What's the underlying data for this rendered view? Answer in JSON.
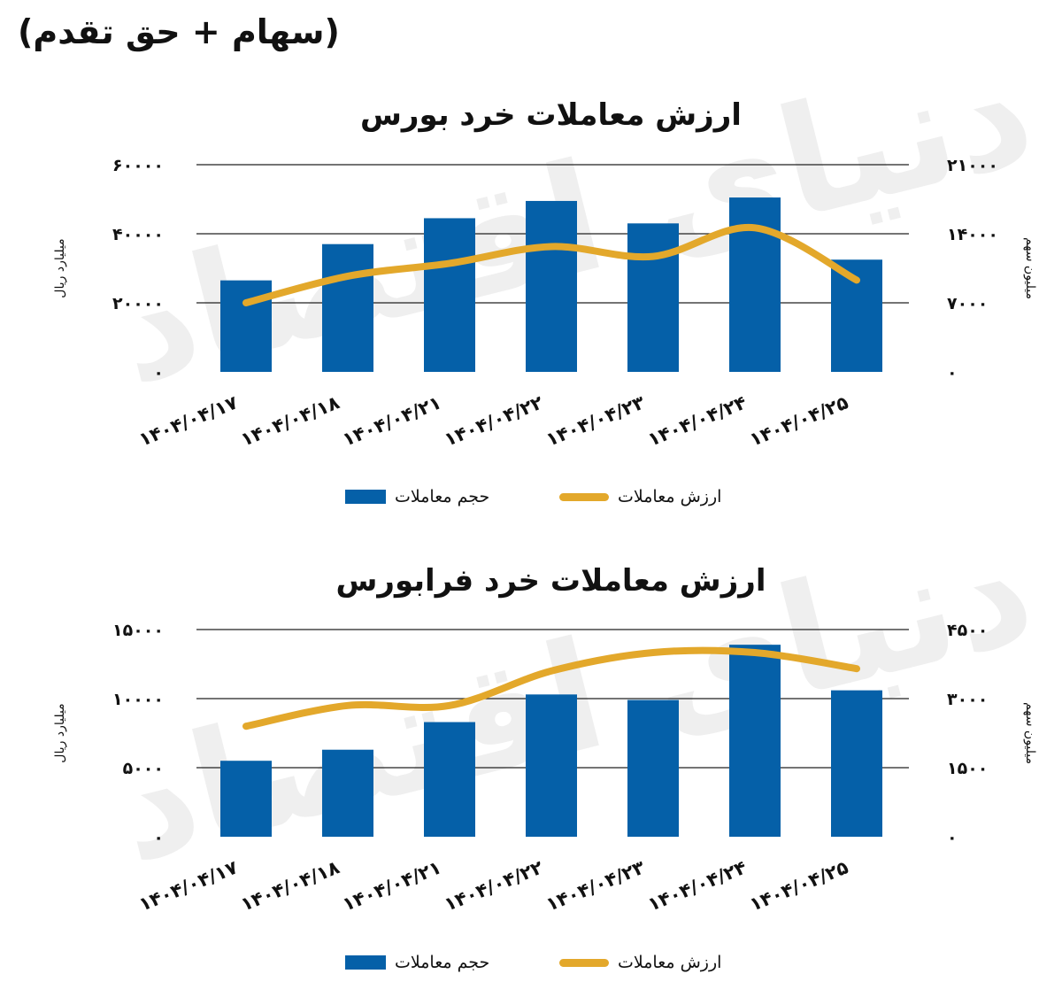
{
  "page_heading": "(سهام + حق تقدم)",
  "watermark": "دنیای اقتصاد",
  "colors": {
    "bar": "#0560a8",
    "line": "#e3a82b",
    "grid": "#222222"
  },
  "chart_data": [
    {
      "type": "bar",
      "title": "ارزش معاملات خرد بورس",
      "categories": [
        "۱۴۰۴/۰۴/۱۷",
        "۱۴۰۴/۰۴/۱۸",
        "۱۴۰۴/۰۴/۲۱",
        "۱۴۰۴/۰۴/۲۲",
        "۱۴۰۴/۰۴/۲۳",
        "۱۴۰۴/۰۴/۲۴",
        "۱۴۰۴/۰۴/۲۵"
      ],
      "left_axis": {
        "label": "میلیارد ریال",
        "ylim": [
          0,
          60000
        ],
        "ticks": [
          "۰",
          "۲۰۰۰۰",
          "۴۰۰۰۰",
          "۶۰۰۰۰"
        ]
      },
      "right_axis": {
        "label": "میلیون سهم",
        "ylim": [
          0,
          21000
        ],
        "ticks": [
          "۰",
          "۷۰۰۰",
          "۱۴۰۰۰",
          "۲۱۰۰۰"
        ]
      },
      "series": [
        {
          "name": "حجم معاملات",
          "type": "bar",
          "axis": "left",
          "values": [
            26500,
            37000,
            44500,
            49500,
            43000,
            50500,
            32500
          ]
        },
        {
          "name": "ارزش معاملات",
          "type": "line",
          "axis": "right",
          "values": [
            7000,
            9700,
            11000,
            12700,
            11700,
            14600,
            9300
          ]
        }
      ],
      "grid": true,
      "legend": "bottom"
    },
    {
      "type": "bar",
      "title": "ارزش معاملات خرد فرابورس",
      "categories": [
        "۱۴۰۴/۰۴/۱۷",
        "۱۴۰۴/۰۴/۱۸",
        "۱۴۰۴/۰۴/۲۱",
        "۱۴۰۴/۰۴/۲۲",
        "۱۴۰۴/۰۴/۲۳",
        "۱۴۰۴/۰۴/۲۴",
        "۱۴۰۴/۰۴/۲۵"
      ],
      "left_axis": {
        "label": "میلیارد ریال",
        "ylim": [
          0,
          15000
        ],
        "ticks": [
          "۰",
          "۵۰۰۰",
          "۱۰۰۰۰",
          "۱۵۰۰۰"
        ]
      },
      "right_axis": {
        "label": "میلیون سهم",
        "ylim": [
          0,
          4500
        ],
        "ticks": [
          "۰",
          "۱۵۰۰",
          "۳۰۰۰",
          "۴۵۰۰"
        ]
      },
      "series": [
        {
          "name": "حجم معاملات",
          "type": "bar",
          "axis": "left",
          "values": [
            5500,
            6300,
            8300,
            10300,
            9900,
            13900,
            10600
          ]
        },
        {
          "name": "ارزش معاملات",
          "type": "line",
          "axis": "right",
          "values": [
            2400,
            2850,
            2850,
            3600,
            4000,
            4000,
            3650
          ]
        }
      ],
      "grid": true,
      "legend": "bottom"
    }
  ]
}
